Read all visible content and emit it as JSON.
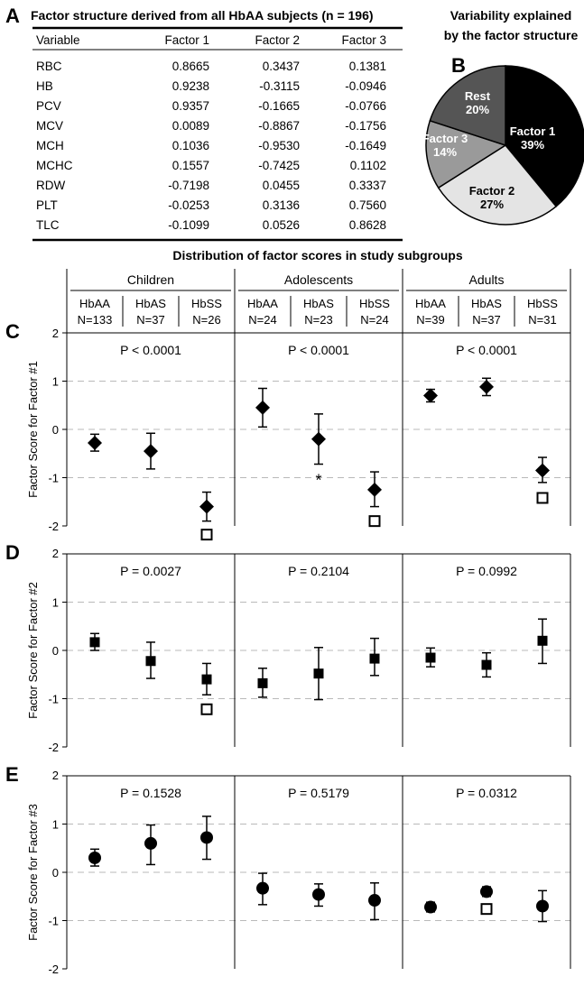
{
  "panel_a": {
    "letter": "A",
    "title": "Factor structure derived from all HbAA subjects (n = 196)",
    "columns": [
      "Variable",
      "Factor 1",
      "Factor 2",
      "Factor 3"
    ],
    "rows": [
      [
        "RBC",
        "0.8665",
        "0.3437",
        "0.1381"
      ],
      [
        "HB",
        "0.9238",
        "-0.3115",
        "-0.0946"
      ],
      [
        "PCV",
        "0.9357",
        "-0.1665",
        "-0.0766"
      ],
      [
        "MCV",
        "0.0089",
        "-0.8867",
        "-0.1756"
      ],
      [
        "MCH",
        "0.1036",
        "-0.9530",
        "-0.1649"
      ],
      [
        "MCHC",
        "0.1557",
        "-0.7425",
        "0.1102"
      ],
      [
        "RDW",
        "-0.7198",
        "0.0455",
        "0.3337"
      ],
      [
        "PLT",
        "-0.0253",
        "0.3136",
        "0.7560"
      ],
      [
        "TLC",
        "-0.1099",
        "0.0526",
        "0.8628"
      ]
    ]
  },
  "panel_b": {
    "letter": "B",
    "title_line1": "Variability explained",
    "title_line2": "by the factor structure",
    "slices": [
      {
        "name": "Factor 1",
        "pct_label": "39%",
        "value": 39,
        "color": "#000000",
        "text_color": "#ffffff"
      },
      {
        "name": "Factor 2",
        "pct_label": "27%",
        "value": 27,
        "color": "#e4e4e4",
        "text_color": "#000000"
      },
      {
        "name": "Factor 3",
        "pct_label": "14%",
        "value": 14,
        "color": "#9a9a9a",
        "text_color": "#ffffff"
      },
      {
        "name": "Rest",
        "pct_label": "20%",
        "value": 20,
        "color": "#555555",
        "text_color": "#ffffff"
      }
    ]
  },
  "distribution_title": "Distribution of factor scores in study subgroups",
  "groups": [
    {
      "label": "Children",
      "subgroups": [
        {
          "name": "HbAA",
          "n": "N=133"
        },
        {
          "name": "HbAS",
          "n": "N=37"
        },
        {
          "name": "HbSS",
          "n": "N=26"
        }
      ]
    },
    {
      "label": "Adolescents",
      "subgroups": [
        {
          "name": "HbAA",
          "n": "N=24"
        },
        {
          "name": "HbAS",
          "n": "N=23"
        },
        {
          "name": "HbSS",
          "n": "N=24"
        }
      ]
    },
    {
      "label": "Adults",
      "subgroups": [
        {
          "name": "HbAA",
          "n": "N=39"
        },
        {
          "name": "HbAS",
          "n": "N=37"
        },
        {
          "name": "HbSS",
          "n": "N=31"
        }
      ]
    }
  ],
  "chart_data": [
    {
      "type": "pie",
      "categories": [
        "Factor 1",
        "Factor 2",
        "Factor 3",
        "Rest"
      ],
      "values": [
        39,
        27,
        14,
        20
      ],
      "title": "Variability explained by the factor structure"
    },
    {
      "type": "scatter",
      "panel": "C",
      "ylabel": "Factor Score for Factor #1",
      "ylim": [
        -2,
        2
      ],
      "yticks": [
        "2",
        "1",
        "0",
        "-1",
        "-2"
      ],
      "marker": "diamond",
      "grid": true,
      "p_values": [
        "P < 0.0001",
        "P < 0.0001",
        "P < 0.0001"
      ],
      "points": [
        {
          "group": "Children",
          "sub": "HbAA",
          "y": -0.28,
          "lo": -0.45,
          "hi": -0.1
        },
        {
          "group": "Children",
          "sub": "HbAS",
          "y": -0.45,
          "lo": -0.82,
          "hi": -0.08
        },
        {
          "group": "Children",
          "sub": "HbSS",
          "y": -1.6,
          "lo": -1.9,
          "hi": -1.3,
          "open_marker": -2.18
        },
        {
          "group": "Adolescents",
          "sub": "HbAA",
          "y": 0.45,
          "lo": 0.05,
          "hi": 0.85
        },
        {
          "group": "Adolescents",
          "sub": "HbAS",
          "y": -0.2,
          "lo": -0.72,
          "hi": 0.32,
          "star_below": true
        },
        {
          "group": "Adolescents",
          "sub": "HbSS",
          "y": -1.25,
          "lo": -1.6,
          "hi": -0.88,
          "open_marker": -1.9
        },
        {
          "group": "Adults",
          "sub": "HbAA",
          "y": 0.7,
          "lo": 0.57,
          "hi": 0.83
        },
        {
          "group": "Adults",
          "sub": "HbAS",
          "y": 0.88,
          "lo": 0.7,
          "hi": 1.06
        },
        {
          "group": "Adults",
          "sub": "HbSS",
          "y": -0.85,
          "lo": -1.1,
          "hi": -0.58,
          "open_marker": -1.42
        }
      ]
    },
    {
      "type": "scatter",
      "panel": "D",
      "ylabel": "Factor Score for Factor #2",
      "ylim": [
        -2,
        2
      ],
      "yticks": [
        "2",
        "1",
        "0",
        "-1",
        "-2"
      ],
      "marker": "square",
      "grid": true,
      "p_values": [
        "P = 0.0027",
        "P = 0.2104",
        "P = 0.0992"
      ],
      "points": [
        {
          "group": "Children",
          "sub": "HbAA",
          "y": 0.17,
          "lo": 0.0,
          "hi": 0.35
        },
        {
          "group": "Children",
          "sub": "HbAS",
          "y": -0.22,
          "lo": -0.58,
          "hi": 0.17
        },
        {
          "group": "Children",
          "sub": "HbSS",
          "y": -0.6,
          "lo": -0.92,
          "hi": -0.27,
          "open_marker": -1.22
        },
        {
          "group": "Adolescents",
          "sub": "HbAA",
          "y": -0.68,
          "lo": -0.97,
          "hi": -0.37
        },
        {
          "group": "Adolescents",
          "sub": "HbAS",
          "y": -0.48,
          "lo": -1.02,
          "hi": 0.06
        },
        {
          "group": "Adolescents",
          "sub": "HbSS",
          "y": -0.17,
          "lo": -0.52,
          "hi": 0.25
        },
        {
          "group": "Adults",
          "sub": "HbAA",
          "y": -0.15,
          "lo": -0.34,
          "hi": 0.05
        },
        {
          "group": "Adults",
          "sub": "HbAS",
          "y": -0.3,
          "lo": -0.55,
          "hi": -0.05
        },
        {
          "group": "Adults",
          "sub": "HbSS",
          "y": 0.2,
          "lo": -0.27,
          "hi": 0.65
        }
      ]
    },
    {
      "type": "scatter",
      "panel": "E",
      "ylabel": "Factor Score for Factor #3",
      "ylim": [
        -2,
        2
      ],
      "yticks": [
        "2",
        "1",
        "0",
        "-1",
        "-2"
      ],
      "marker": "circle",
      "grid": true,
      "p_values": [
        "P = 0.1528",
        "P = 0.5179",
        "P = 0.0312"
      ],
      "points": [
        {
          "group": "Children",
          "sub": "HbAA",
          "y": 0.3,
          "lo": 0.13,
          "hi": 0.48
        },
        {
          "group": "Children",
          "sub": "HbAS",
          "y": 0.6,
          "lo": 0.16,
          "hi": 0.98
        },
        {
          "group": "Children",
          "sub": "HbSS",
          "y": 0.72,
          "lo": 0.27,
          "hi": 1.16
        },
        {
          "group": "Adolescents",
          "sub": "HbAA",
          "y": -0.33,
          "lo": -0.67,
          "hi": -0.02
        },
        {
          "group": "Adolescents",
          "sub": "HbAS",
          "y": -0.46,
          "lo": -0.7,
          "hi": -0.24
        },
        {
          "group": "Adolescents",
          "sub": "HbSS",
          "y": -0.58,
          "lo": -0.98,
          "hi": -0.22
        },
        {
          "group": "Adults",
          "sub": "HbAA",
          "y": -0.72,
          "lo": -0.82,
          "hi": -0.62
        },
        {
          "group": "Adults",
          "sub": "HbAS",
          "y": -0.4,
          "lo": -0.5,
          "hi": -0.3,
          "open_marker": -0.76
        },
        {
          "group": "Adults",
          "sub": "HbSS",
          "y": -0.7,
          "lo": -1.02,
          "hi": -0.38
        }
      ]
    }
  ]
}
